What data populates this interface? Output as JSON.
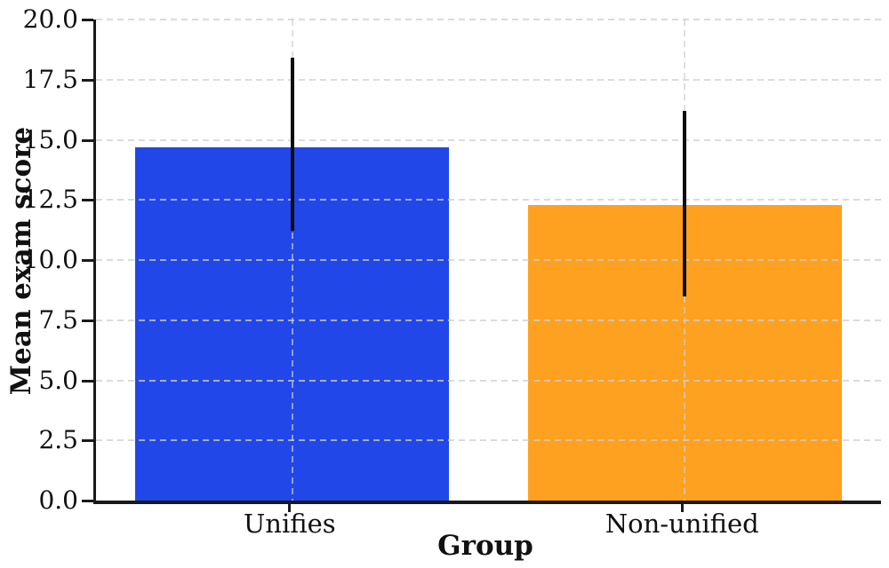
{
  "chart_data": {
    "type": "bar",
    "title": "",
    "xlabel": "Group",
    "ylabel": "Mean exam score",
    "categories": [
      "Unifies",
      "Non-unified"
    ],
    "values": [
      14.7,
      12.3
    ],
    "error_low": [
      11.2,
      8.5
    ],
    "error_high": [
      18.4,
      16.2
    ],
    "bar_colors": [
      "#2147e8",
      "#ffa120"
    ],
    "ylim": [
      0,
      20
    ],
    "ytick_step": 2.5,
    "ytick_labels": [
      "0.0",
      "2.5",
      "5.0",
      "7.5",
      "10.0",
      "12.5",
      "15.0",
      "17.5",
      "20.0"
    ],
    "bar_width_fraction": 0.8,
    "grid": "dashed, horizontal at every y-tick plus vertical at each category center, drawn above bars",
    "legend": "none",
    "colors": {
      "spine": "#1a1a1a",
      "error_bar": "#0d0d0d",
      "grid": "#d3d6d3",
      "text": "#111111",
      "background": "#ffffff"
    }
  }
}
